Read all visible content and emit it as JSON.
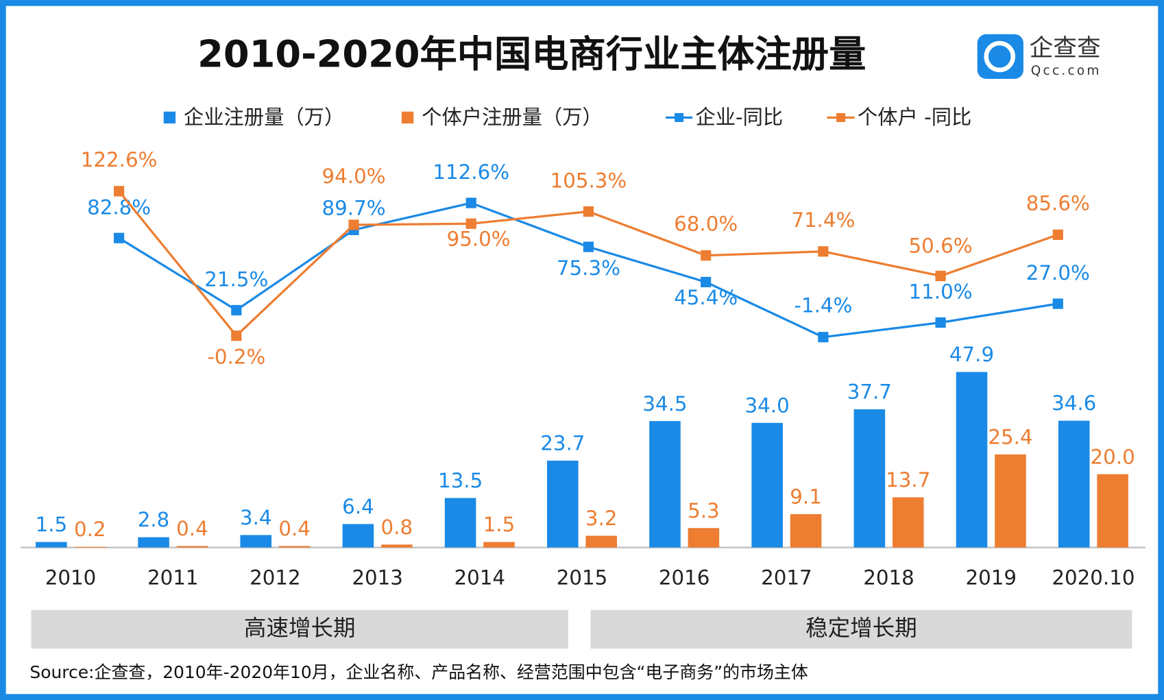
{
  "chart_data": {
    "type": "bar_line",
    "title": "2010-2020年中国电商行业主体注册量",
    "logo": {
      "name": "企查查",
      "domain": "Qcc.com"
    },
    "categories": [
      "2010",
      "2011",
      "2012",
      "2013",
      "2014",
      "2015",
      "2016",
      "2017",
      "2018",
      "2019",
      "2020.10"
    ],
    "series": [
      {
        "name": "企业注册量（万）",
        "type": "bar",
        "color": "#1a8ae6",
        "values": [
          1.5,
          2.8,
          3.4,
          6.4,
          13.5,
          23.7,
          34.5,
          34.0,
          37.7,
          47.9,
          34.6
        ],
        "value_labels": [
          "1.5",
          "2.8",
          "3.4",
          "6.4",
          "13.5",
          "23.7",
          "34.5",
          "34.0",
          "37.7",
          "47.9",
          "34.6"
        ]
      },
      {
        "name": "个体户注册量（万）",
        "type": "bar",
        "color": "#ed7d31",
        "values": [
          0.2,
          0.4,
          0.4,
          0.8,
          1.5,
          3.2,
          5.3,
          9.1,
          13.7,
          25.4,
          20.0
        ],
        "value_labels": [
          "0.2",
          "0.4",
          "0.4",
          "0.8",
          "1.5",
          "3.2",
          "5.3",
          "9.1",
          "13.7",
          "25.4",
          "20.0"
        ]
      },
      {
        "name": "企业-同比",
        "type": "line",
        "color": "#1a8ae6",
        "values": [
          null,
          82.8,
          21.5,
          89.7,
          112.6,
          75.3,
          45.4,
          -1.4,
          11.0,
          27.0,
          null
        ],
        "value_labels": [
          null,
          "82.8%",
          "21.5%",
          "89.7%",
          "112.6%",
          "75.3%",
          "45.4%",
          "-1.4%",
          "11.0%",
          "27.0%",
          null
        ]
      },
      {
        "name": "个体户 -同比",
        "type": "line",
        "color": "#ed7d31",
        "values": [
          null,
          122.6,
          -0.2,
          94.0,
          95.0,
          105.3,
          68.0,
          71.4,
          50.6,
          85.6,
          null
        ],
        "value_labels": [
          null,
          "122.6%",
          "-0.2%",
          "94.0%",
          "95.0%",
          "105.3%",
          "68.0%",
          "71.4%",
          "50.6%",
          "85.6%",
          null
        ]
      }
    ],
    "periods": [
      "高速增长期",
      "稳定增长期"
    ],
    "source": "Source:企查查，2010年-2020年10月，企业名称、产品名称、经营范围中包含“电子商务”的市场主体"
  }
}
